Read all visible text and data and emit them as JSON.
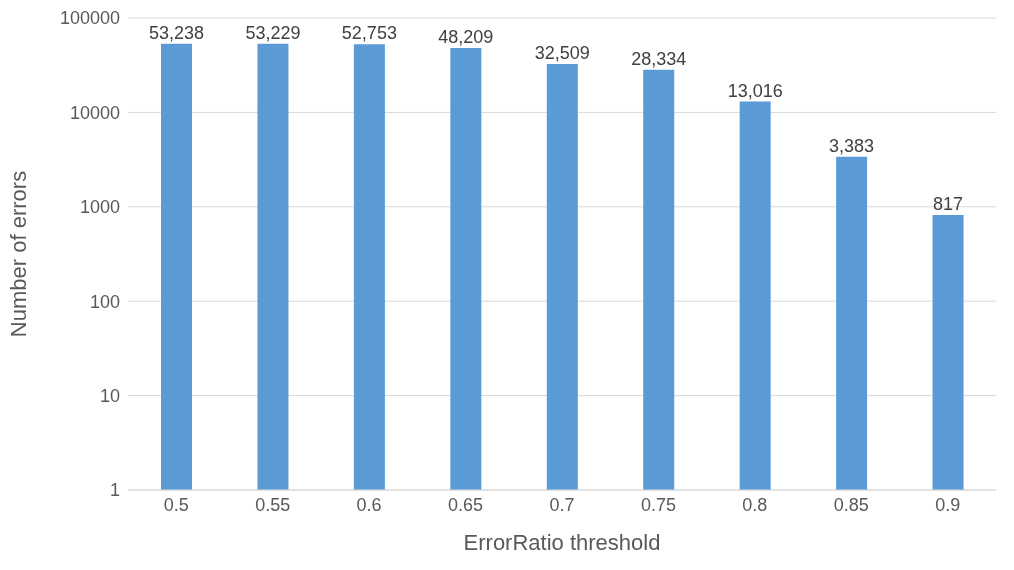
{
  "chart_data": {
    "type": "bar",
    "xlabel": "ErrorRatio threshold",
    "ylabel": "Number of errors",
    "categories": [
      "0.5",
      "0.55",
      "0.6",
      "0.65",
      "0.7",
      "0.75",
      "0.8",
      "0.85",
      "0.9"
    ],
    "values": [
      53238,
      53229,
      52753,
      48209,
      32509,
      28334,
      13016,
      3383,
      817
    ],
    "value_labels": [
      "53,238",
      "53,229",
      "52,753",
      "48,209",
      "32,509",
      "28,334",
      "13,016",
      "3,383",
      "817"
    ],
    "color": "#5b9bd5",
    "log": true,
    "ylim": [
      1,
      100000
    ],
    "yticks": [
      1,
      10,
      100,
      1000,
      10000,
      100000
    ],
    "grid": "y",
    "legend": false
  }
}
